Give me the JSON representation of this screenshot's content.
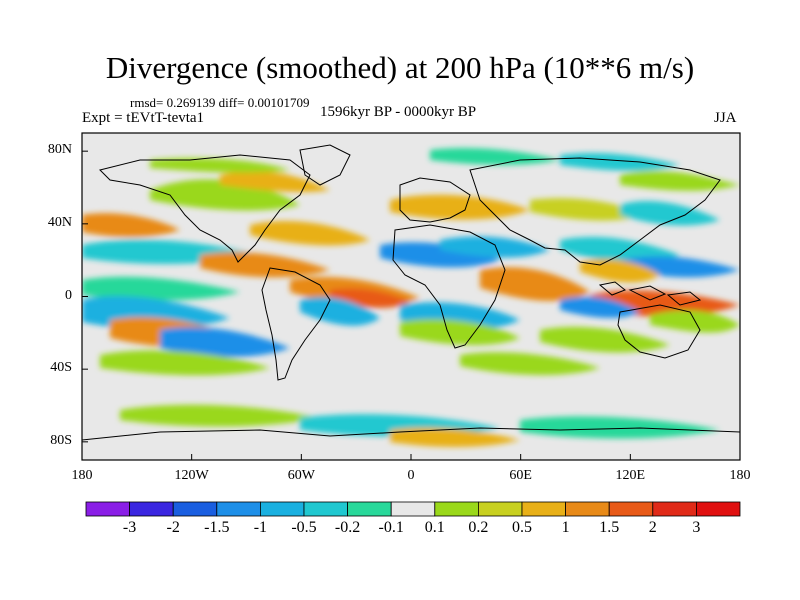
{
  "header": {
    "title": "Divergence (smoothed) at 200 hPa (10**6 m/s)",
    "stats": "rmsd= 0.269139 diff= 0.00101709",
    "experiment": "Expt = tEVtT-tevta1",
    "period": "1596kyr BP - 0000kyr BP",
    "season": "JJA"
  },
  "map": {
    "land_outline_color": "#000000",
    "background_color": "#e8e8e8",
    "lat_ticks": [
      "80N",
      "40N",
      "0",
      "40S",
      "80S"
    ],
    "lat_values": [
      80,
      40,
      0,
      -40,
      -80
    ],
    "lon_ticks": [
      "180",
      "120W",
      "60W",
      "0",
      "60E",
      "120E",
      "180"
    ],
    "lon_values": [
      -180,
      -120,
      -60,
      0,
      60,
      120,
      180
    ],
    "lon_range": [
      -180,
      180
    ],
    "lat_range": [
      -90,
      90
    ]
  },
  "colorbar": {
    "labels": [
      "-3",
      "-2",
      "-1.5",
      "-1",
      "-0.5",
      "-0.2",
      "-0.1",
      "0.1",
      "0.2",
      "0.5",
      "1",
      "1.5",
      "2",
      "3"
    ],
    "colors": [
      "#8a1ee6",
      "#3a26e0",
      "#1a5ee0",
      "#1e8fe8",
      "#1ab0e0",
      "#20c8d0",
      "#28d89a",
      "#e8e8e8",
      "#9ad81a",
      "#c8d020",
      "#e8b018",
      "#e88a18",
      "#e85a18",
      "#e02a18",
      "#e01010"
    ]
  }
}
